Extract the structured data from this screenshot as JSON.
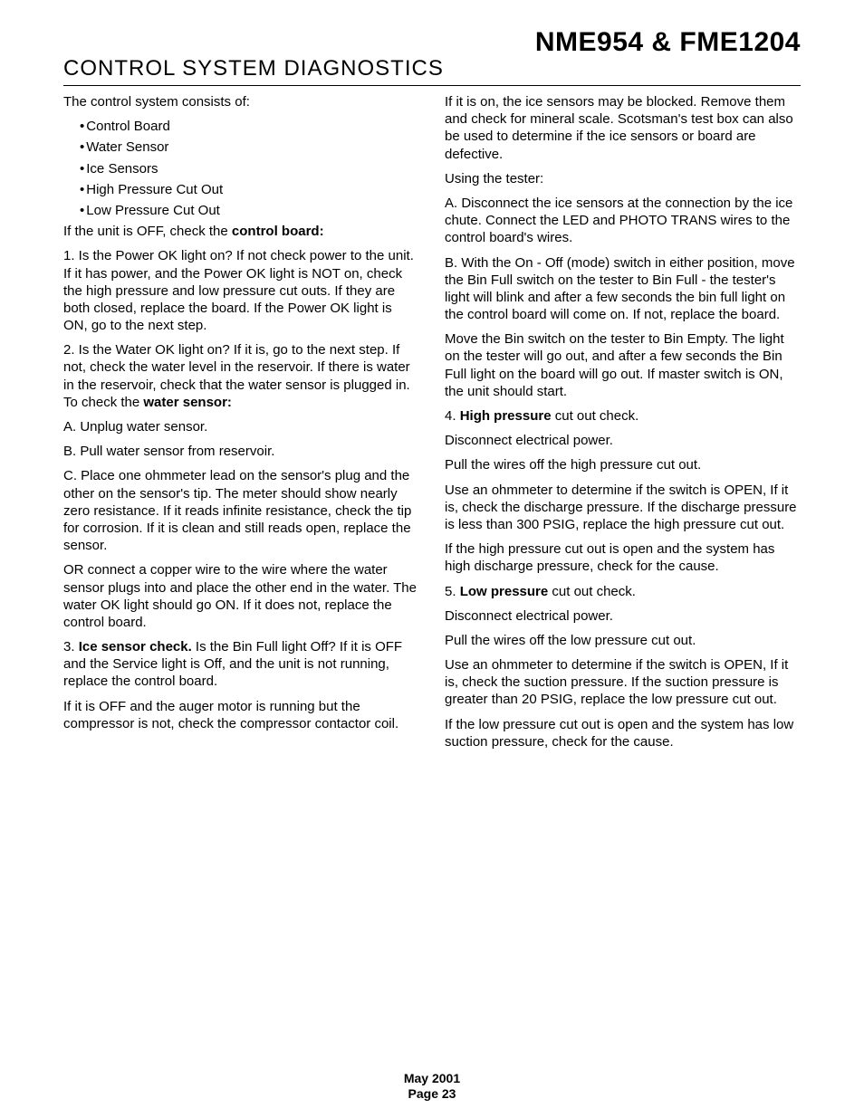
{
  "header": {
    "doc_title": "NME954 & FME1204",
    "section_title": "CONTROL SYSTEM DIAGNOSTICS"
  },
  "intro": "The control system consists of:",
  "bullets": [
    "Control Board",
    "Water Sensor",
    "Ice Sensors",
    "High Pressure Cut Out",
    "Low Pressure Cut Out"
  ],
  "p_off_check_pre": "If the unit is OFF, check the ",
  "p_off_check_bold": "control board:",
  "p1": "1. Is the Power OK light on? If not check power to the unit. If it has power, and the Power OK light is NOT on, check the high pressure and low pressure cut outs. If they are both closed, replace the board. If the Power OK light is ON, go to the next step.",
  "p2_pre": "2. Is the Water OK light on? If it is, go to the next step. If not, check the water level in the reservoir. If there is water in the reservoir, check that the water sensor is plugged in. To check the ",
  "p2_bold": "water sensor:",
  "pA": "A. Unplug water sensor.",
  "pB": "B. Pull water sensor from reservoir.",
  "pC": "C. Place one ohmmeter lead on the sensor's plug and the other on the sensor's tip. The meter should show nearly zero resistance. If it reads infinite resistance, check the tip for corrosion. If it is clean and still reads open, replace the sensor.",
  "pOR": "OR connect a copper wire to the wire where the water sensor plugs into and place the other end in the water. The water OK light should go ON. If it does not, replace the control board.",
  "p3_pre": "3. ",
  "p3_bold": "Ice sensor check.",
  "p3_post": " Is the Bin Full light Off? If it is OFF and the Service light is Off, and the unit is not running, replace the control board.",
  "p3b": "If it is OFF and the auger motor is running but the compressor is not, check the compressor contactor coil.",
  "p3c": "If it is on, the ice sensors may be blocked. Remove them and check for mineral scale. Scotsman's test box can also be used to determine if the ice sensors or board are defective.",
  "pUsing": "Using the tester:",
  "pTA": "A. Disconnect the ice sensors at the connection by the ice chute. Connect the LED and PHOTO TRANS wires to the control board's wires.",
  "pTB": "B. With the On - Off (mode) switch in either position, move the Bin Full switch on the tester to Bin Full - the tester's light will blink and after a few seconds the bin full light on the control board will come on. If not, replace the board.",
  "pMove": "Move the Bin switch on the tester to Bin Empty. The light on the tester will go out, and after a few seconds the Bin Full light on the board will go out. If master switch is ON, the unit should start.",
  "p4_pre": "4. ",
  "p4_bold": "High pressure",
  "p4_post": " cut out check.",
  "p4a": "Disconnect electrical power.",
  "p4b": "Pull the wires off the high pressure cut out.",
  "p4c": "Use an ohmmeter to determine if the switch is OPEN, If it is, check the discharge pressure. If the discharge pressure is less than 300 PSIG, replace the high pressure cut out.",
  "p4d": "If the high pressure cut out is open and the system has high discharge pressure, check for the cause.",
  "p5_pre": "5. ",
  "p5_bold": "Low pressure",
  "p5_post": " cut out check.",
  "p5a": "Disconnect electrical power.",
  "p5b": "Pull the wires off the low pressure cut out.",
  "p5c": "Use an ohmmeter to determine if the switch is OPEN, If it is, check the suction pressure. If the suction pressure is greater than 20 PSIG, replace the low pressure cut out.",
  "p5d": "If the low pressure cut out is open and the system has low suction pressure, check for the cause.",
  "footer": {
    "date": "May 2001",
    "page": "Page 23"
  }
}
